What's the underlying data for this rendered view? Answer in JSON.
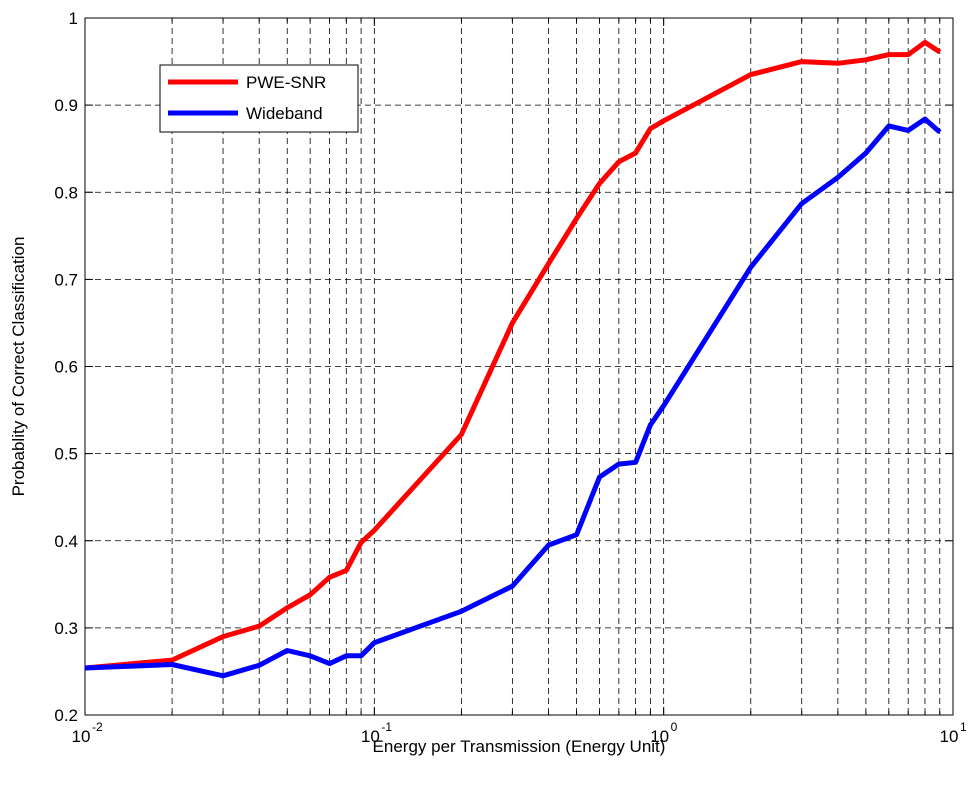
{
  "chart_data": {
    "type": "line",
    "title": "",
    "xlabel": "Energy per Transmission (Energy Unit)",
    "ylabel": "Probablity of Correct Classification",
    "xscale": "log",
    "xlim": [
      0.01,
      10
    ],
    "ylim": [
      0.2,
      1
    ],
    "grid": true,
    "legend_position": "top-left",
    "x_ticks": [
      {
        "base": "10",
        "exp": "-2"
      },
      {
        "base": "10",
        "exp": "-1"
      },
      {
        "base": "10",
        "exp": "0"
      },
      {
        "base": "10",
        "exp": "1"
      }
    ],
    "y_ticks": [
      "0.2",
      "0.3",
      "0.4",
      "0.5",
      "0.6",
      "0.7",
      "0.8",
      "0.9",
      "1"
    ],
    "series": [
      {
        "name": "PWE-SNR",
        "color": "#ff0000",
        "x": [
          0.01,
          0.02,
          0.03,
          0.04,
          0.05,
          0.06,
          0.07,
          0.08,
          0.09,
          0.1,
          0.2,
          0.3,
          0.4,
          0.5,
          0.6,
          0.7,
          0.8,
          0.9,
          1,
          2,
          3,
          4,
          5,
          6,
          7,
          8,
          9
        ],
        "y": [
          0.254,
          0.263,
          0.29,
          0.302,
          0.323,
          0.338,
          0.358,
          0.366,
          0.398,
          0.412,
          0.522,
          0.65,
          0.718,
          0.77,
          0.81,
          0.835,
          0.845,
          0.873,
          0.882,
          0.935,
          0.95,
          0.948,
          0.952,
          0.958,
          0.958,
          0.972,
          0.961
        ]
      },
      {
        "name": "Wideband",
        "color": "#0000ff",
        "x": [
          0.01,
          0.02,
          0.03,
          0.04,
          0.05,
          0.06,
          0.07,
          0.08,
          0.09,
          0.1,
          0.2,
          0.3,
          0.4,
          0.5,
          0.6,
          0.7,
          0.8,
          0.9,
          1,
          2,
          3,
          4,
          5,
          6,
          7,
          8,
          9
        ],
        "y": [
          0.254,
          0.258,
          0.245,
          0.257,
          0.274,
          0.268,
          0.259,
          0.268,
          0.268,
          0.283,
          0.319,
          0.348,
          0.395,
          0.407,
          0.473,
          0.488,
          0.49,
          0.533,
          0.555,
          0.714,
          0.787,
          0.817,
          0.845,
          0.876,
          0.871,
          0.884,
          0.869
        ]
      }
    ]
  }
}
